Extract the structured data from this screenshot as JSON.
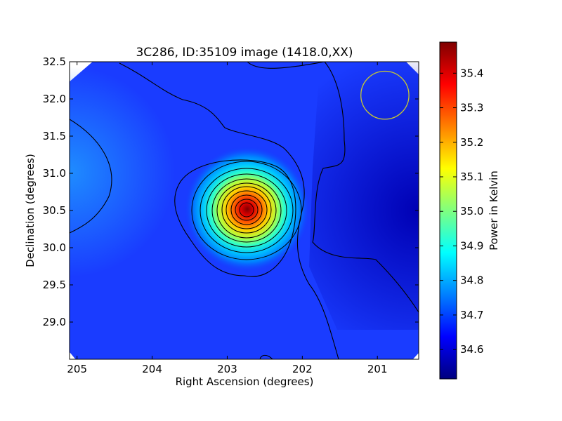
{
  "chart_data": {
    "type": "heatmap",
    "title": "3C286, ID:35109 image (1418.0,XX)",
    "xlabel": "Right Ascension (degrees)",
    "ylabel": "Declination (degrees)",
    "xlim": [
      205.1,
      200.45
    ],
    "ylim": [
      28.5,
      32.5
    ],
    "x_ticks": [
      205,
      204,
      203,
      202,
      201
    ],
    "x_tick_labels": [
      "205",
      "204",
      "203",
      "202",
      "201"
    ],
    "y_ticks": [
      29.0,
      29.5,
      30.0,
      30.5,
      31.0,
      31.5,
      32.0,
      32.5
    ],
    "y_tick_labels": [
      "29.0",
      "29.5",
      "30.0",
      "30.5",
      "31.0",
      "31.5",
      "32.0",
      "32.5"
    ],
    "colorbar": {
      "label": "Power in Kelvin",
      "range": [
        34.515,
        35.49
      ],
      "ticks": [
        34.6,
        34.7,
        34.8,
        34.9,
        35.0,
        35.1,
        35.2,
        35.3,
        35.4
      ],
      "tick_labels": [
        "34.6",
        "34.7",
        "34.8",
        "34.9",
        "35.0",
        "35.1",
        "35.2",
        "35.3",
        "35.4"
      ],
      "colormap": "jet"
    },
    "source": {
      "ra": 202.75,
      "dec": 30.5,
      "peak": 35.49
    },
    "beam_circle": {
      "ra": 200.9,
      "dec": 32.05,
      "radius_deg": 0.32,
      "color": "#c8c832"
    },
    "grid": false
  }
}
